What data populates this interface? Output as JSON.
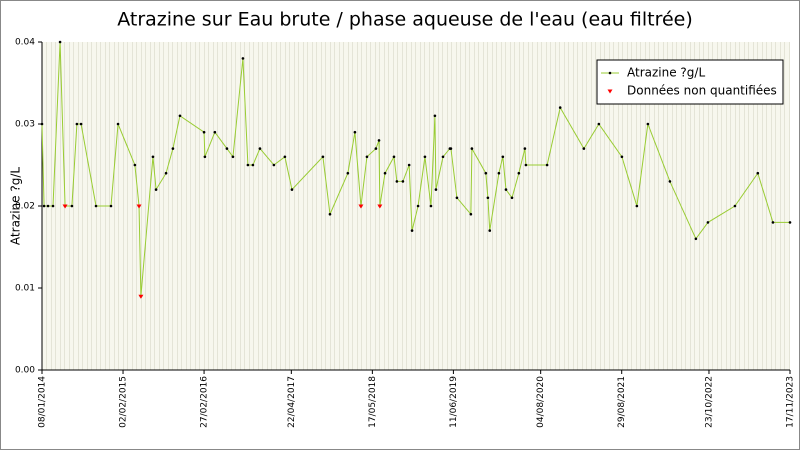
{
  "chart_data": {
    "type": "line",
    "title": "Atrazine sur Eau brute / phase aqueuse de l'eau (eau filtrée)",
    "y_label": "Atrazine ?g/L",
    "x": [
      "2014-01-08",
      "2014-01-18",
      "2014-02-06",
      "2014-03-02",
      "2014-04-05",
      "2014-04-29",
      "2014-06-01",
      "2014-06-25",
      "2014-07-15",
      "2014-09-25",
      "2014-12-06",
      "2015-01-09",
      "2015-03-31",
      "2015-04-20",
      "2015-04-29",
      "2015-06-26",
      "2015-07-11",
      "2015-08-28",
      "2015-09-30",
      "2015-11-03",
      "2016-02-27",
      "2016-03-02",
      "2016-04-19",
      "2016-06-16",
      "2016-07-15",
      "2016-09-01",
      "2016-09-25",
      "2016-10-19",
      "2016-11-22",
      "2017-01-28",
      "2017-03-22",
      "2017-04-25",
      "2017-09-21",
      "2017-10-25",
      "2018-01-19",
      "2018-02-22",
      "2018-03-23",
      "2018-04-21",
      "2018-06-03",
      "2018-06-18",
      "2018-06-22",
      "2018-07-17",
      "2018-08-29",
      "2018-09-12",
      "2018-10-11",
      "2018-11-10",
      "2018-11-24",
      "2018-12-23",
      "2019-01-25",
      "2019-02-23",
      "2019-03-14",
      "2019-03-19",
      "2019-04-22",
      "2019-05-25",
      "2019-05-30",
      "2019-06-28",
      "2019-09-03",
      "2019-09-08",
      "2019-11-14",
      "2019-11-24",
      "2019-12-03",
      "2020-01-16",
      "2020-02-04",
      "2020-02-19",
      "2020-03-19",
      "2020-04-21",
      "2020-05-20",
      "2020-05-25",
      "2020-09-04",
      "2020-11-06",
      "2021-02-28",
      "2021-05-11",
      "2021-08-30",
      "2021-11-10",
      "2022-01-02",
      "2022-04-18",
      "2022-08-21",
      "2022-10-18",
      "2023-02-25",
      "2023-06-15",
      "2023-08-27",
      "2023-11-17"
    ],
    "series": [
      {
        "name": "Atrazine ?g/L",
        "color": "#99cc33",
        "marker_color": "#000000",
        "values": [
          0.03,
          0.02,
          0.02,
          0.02,
          0.04,
          0.02,
          0.02,
          0.03,
          0.03,
          0.02,
          0.02,
          0.03,
          0.025,
          0.02,
          0.009,
          0.026,
          0.022,
          0.024,
          0.027,
          0.031,
          0.029,
          0.026,
          0.029,
          0.027,
          0.026,
          0.038,
          0.025,
          0.025,
          0.027,
          0.025,
          0.026,
          0.022,
          0.026,
          0.019,
          0.024,
          0.029,
          0.02,
          0.026,
          0.027,
          0.028,
          0.02,
          0.024,
          0.026,
          0.023,
          0.023,
          0.025,
          0.017,
          0.02,
          0.026,
          0.02,
          0.031,
          0.022,
          0.026,
          0.027,
          0.027,
          0.021,
          0.019,
          0.027,
          0.024,
          0.021,
          0.017,
          0.024,
          0.026,
          0.022,
          0.021,
          0.024,
          0.027,
          0.025,
          0.025,
          0.032,
          0.027,
          0.03,
          0.026,
          0.02,
          0.03,
          0.023,
          0.016,
          0.018,
          0.02,
          0.024,
          0.018,
          0.018
        ]
      },
      {
        "name": "Données non quantifiées",
        "color": "#ff0000",
        "values": [
          null,
          null,
          null,
          null,
          null,
          0.02,
          null,
          null,
          null,
          null,
          null,
          null,
          null,
          0.02,
          0.009,
          null,
          null,
          null,
          null,
          null,
          null,
          null,
          null,
          null,
          null,
          null,
          null,
          null,
          null,
          null,
          null,
          null,
          null,
          null,
          null,
          null,
          0.02,
          null,
          null,
          null,
          0.02,
          null,
          null,
          null,
          null,
          null,
          null,
          null,
          null,
          null,
          null,
          null,
          null,
          null,
          null,
          null,
          null,
          null,
          null,
          null,
          null,
          null,
          null,
          null,
          null,
          null,
          null,
          null,
          null,
          null,
          null,
          null,
          null,
          null,
          null,
          null,
          null,
          null,
          null,
          null,
          null,
          null
        ]
      }
    ],
    "xlim": [
      "2014-01-08",
      "2023-11-17"
    ],
    "xticks": [
      {
        "value": "2014-01-08",
        "label": "08/01/2014"
      },
      {
        "value": "2015-02-02",
        "label": "02/02/2015"
      },
      {
        "value": "2016-02-27",
        "label": "27/02/2016"
      },
      {
        "value": "2017-04-22",
        "label": "22/04/2017"
      },
      {
        "value": "2018-05-17",
        "label": "17/05/2018"
      },
      {
        "value": "2019-06-11",
        "label": "11/06/2019"
      },
      {
        "value": "2020-08-04",
        "label": "04/08/2020"
      },
      {
        "value": "2021-08-29",
        "label": "29/08/2021"
      },
      {
        "value": "2022-10-23",
        "label": "23/10/2022"
      },
      {
        "value": "2023-11-17",
        "label": "17/11/2023"
      }
    ],
    "ylim": [
      0,
      0.04
    ],
    "yticks": [
      {
        "value": 0,
        "label": "0.00"
      },
      {
        "value": 0.01,
        "label": "0.01"
      },
      {
        "value": 0.02,
        "label": "0.02"
      },
      {
        "value": 0.03,
        "label": "0.03"
      },
      {
        "value": 0.04,
        "label": "0.04"
      }
    ],
    "legend": "top-right"
  }
}
